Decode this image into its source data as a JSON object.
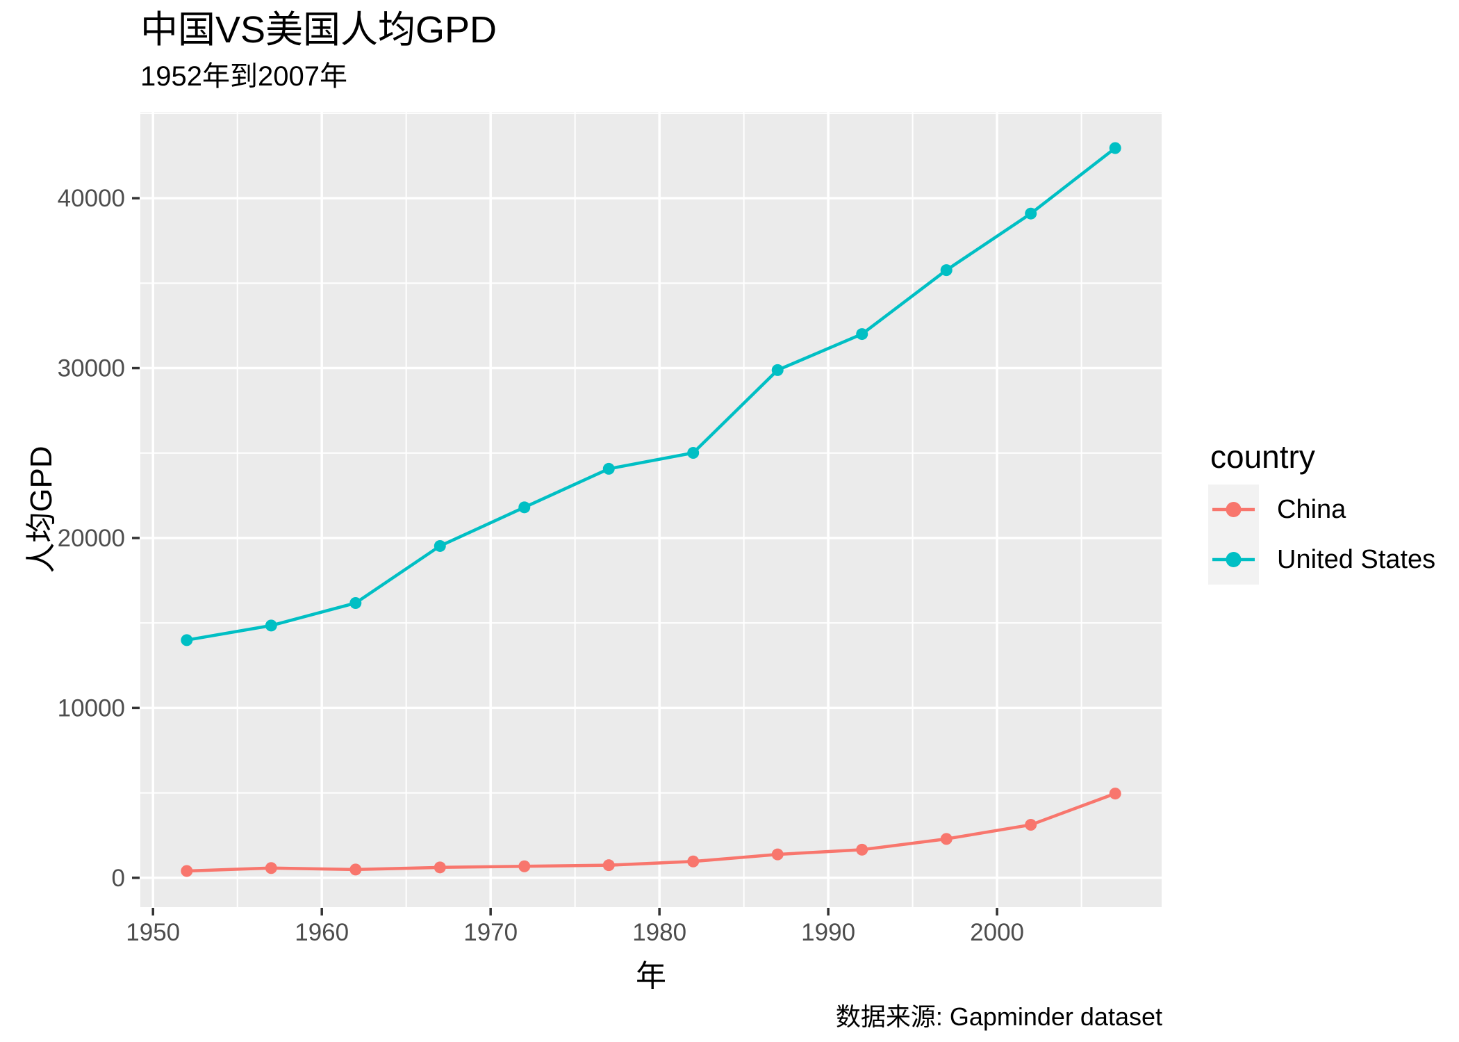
{
  "chart_data": {
    "type": "line",
    "title": "中国VS美国人均GPD",
    "subtitle": "1952年到2007年",
    "xlabel": "年",
    "ylabel": "人均GPD",
    "caption": "数据来源: Gapminder dataset",
    "legend_title": "country",
    "legend_position": "right",
    "grid": true,
    "x": [
      1952,
      1957,
      1962,
      1967,
      1972,
      1977,
      1982,
      1987,
      1992,
      1997,
      2002,
      2007
    ],
    "series": [
      {
        "name": "China",
        "color": "#F8766D",
        "values": [
          400.45,
          575.99,
          487.67,
          612.71,
          676.9,
          741.24,
          962.42,
          1378.9,
          1655.78,
          2289.23,
          3119.28,
          4959.11
        ]
      },
      {
        "name": "United States",
        "color": "#00BFC4",
        "values": [
          13990.48,
          14847.13,
          16173.15,
          19530.37,
          21806.04,
          24072.63,
          25009.56,
          29884.35,
          32003.93,
          35767.43,
          39097.1,
          42951.65
        ]
      }
    ],
    "xlim": [
      1949.25,
      2009.75
    ],
    "ylim": [
      -1727,
      45079
    ],
    "x_ticks": [
      1950,
      1960,
      1970,
      1980,
      1990,
      2000
    ],
    "x_minor_ticks": [
      1955,
      1965,
      1975,
      1985,
      1995,
      2005
    ],
    "y_ticks": [
      0,
      10000,
      20000,
      30000,
      40000
    ],
    "y_minor_ticks": [
      5000,
      15000,
      25000,
      35000,
      45000
    ],
    "colors": {
      "panel_bg": "#EBEBEB",
      "grid_major": "#FFFFFF",
      "grid_minor": "#FFFFFF",
      "tick_label": "#4D4D4D",
      "tick_mark": "#333333",
      "text": "#000000",
      "legend_key_bg": "#F2F2F2"
    }
  }
}
